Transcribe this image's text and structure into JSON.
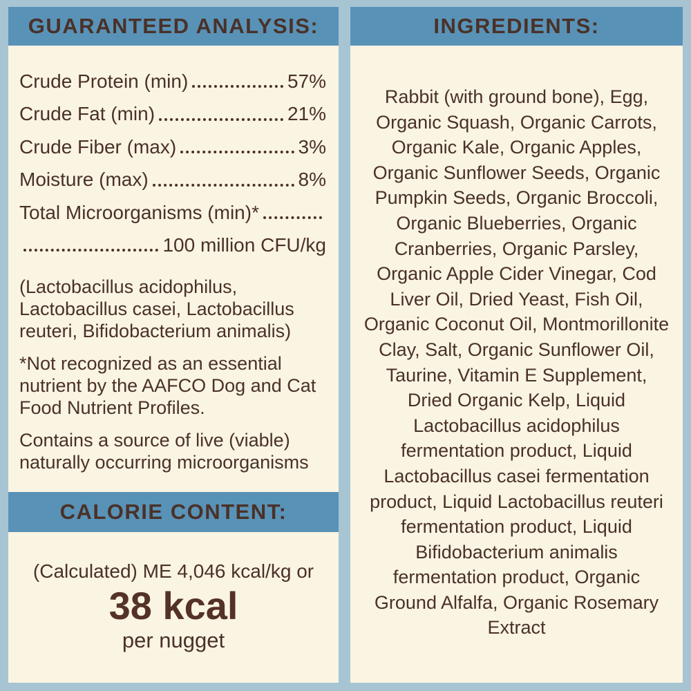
{
  "colors": {
    "page_background": "#a7c4d3",
    "header_bar_blue": "#5992b7",
    "panel_cream": "#faf4e3",
    "text_brown": "#4a3128"
  },
  "guaranteed_analysis": {
    "header": "GUARANTEED ANALYSIS:",
    "rows": [
      {
        "label": "Crude Protein (min)",
        "value": "57%"
      },
      {
        "label": "Crude Fat (min)",
        "value": "21%"
      },
      {
        "label": "Crude Fiber (max)",
        "value": "3%"
      },
      {
        "label": "Moisture (max)",
        "value": "8%"
      },
      {
        "label": "Total Microorganisms (min)*",
        "value": ""
      },
      {
        "label": "",
        "value": "100 million CFU/kg"
      }
    ],
    "notes": [
      "(Lactobacillus acidophilus, Lactobacillus casei, Lactobacillus reuteri, Bifidobacterium animalis)",
      "*Not recognized as an essential nutrient by the AAFCO Dog and Cat Food Nutrient Profiles.",
      "Contains a source of live (viable) naturally occurring microorganisms"
    ]
  },
  "calorie_content": {
    "header": "CALORIE CONTENT:",
    "line1": "(Calculated) ME 4,046 kcal/kg or",
    "big_value": "38 kcal",
    "line3": "per nugget"
  },
  "ingredients": {
    "header": "INGREDIENTS:",
    "text": "Rabbit (with ground bone), Egg, Organic Squash, Organic Carrots, Organic Kale, Organic Apples, Organic Sunflower Seeds, Organic Pumpkin Seeds, Organic Broccoli, Organic Blueberries, Organic Cranberries, Organic Parsley, Organic Apple Cider Vinegar, Cod Liver Oil, Dried Yeast, Fish Oil, Organic Coconut Oil, Montmorillonite Clay, Salt, Organic Sunflower Oil, Taurine, Vitamin E Supplement, Dried Organic Kelp, Liquid Lactobacillus acidophilus fermentation product, Liquid Lactobacillus casei fermentation product, Liquid Lactobacillus reuteri fermentation product, Liquid Bifidobacterium animalis fermentation product, Organic Ground Alfalfa, Organic Rosemary Extract"
  }
}
